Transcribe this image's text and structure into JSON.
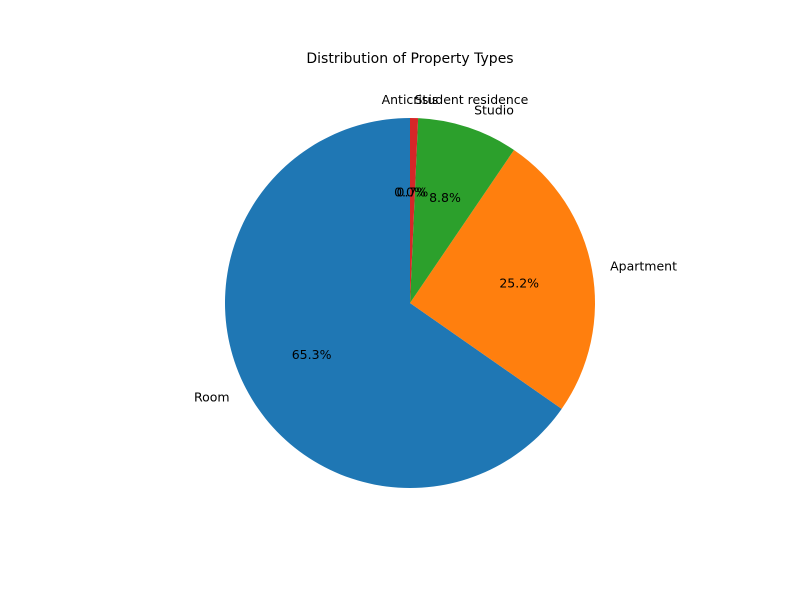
{
  "chart_data": {
    "type": "pie",
    "title": "Distribution of Property Types",
    "start_angle_deg": 90,
    "direction": "counterclockwise",
    "slices": [
      {
        "label": "Room",
        "percent": 65.3,
        "pct_text": "65.3%",
        "color": "#1f77b4"
      },
      {
        "label": "Apartment",
        "percent": 25.2,
        "pct_text": "25.2%",
        "color": "#ff7f0e"
      },
      {
        "label": "Studio",
        "percent": 8.8,
        "pct_text": "8.8%",
        "color": "#2ca02c"
      },
      {
        "label": "Student residence",
        "percent": 0.7,
        "pct_text": "0.7%",
        "color": "#d62728"
      },
      {
        "label": "Anticrisis",
        "percent": 0.0,
        "pct_text": "0.0%",
        "color": "#9467bd"
      }
    ]
  }
}
